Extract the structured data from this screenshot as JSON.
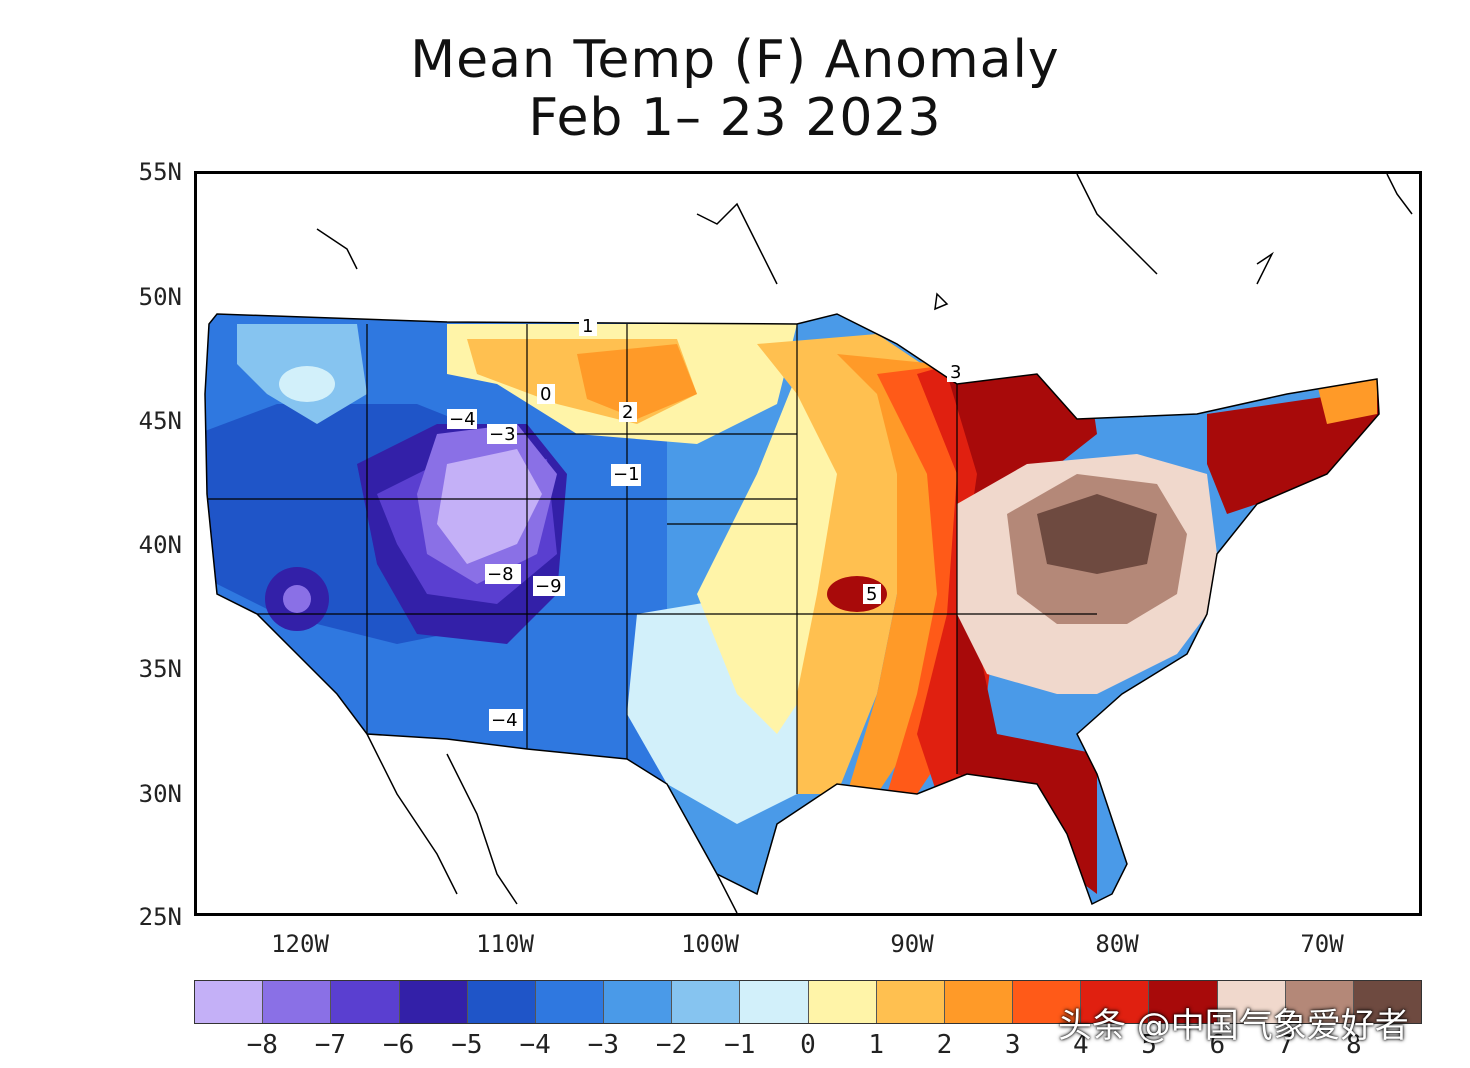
{
  "title": {
    "line1": "Mean Temp (F) Anomaly",
    "line2": "Feb 1– 23 2023"
  },
  "latitudes": [
    "55N",
    "50N",
    "45N",
    "40N",
    "35N",
    "30N",
    "25N"
  ],
  "longitudes": [
    "120W",
    "110W",
    "100W",
    "90W",
    "80W",
    "70W"
  ],
  "colorbar": {
    "colors": [
      "#c4b0f7",
      "#8a70e6",
      "#5a3fd0",
      "#3320a8",
      "#1f55c8",
      "#2f78e0",
      "#4a9ae8",
      "#86c4f0",
      "#d2f0fa",
      "#fff4a8",
      "#ffc050",
      "#ff9a28",
      "#ff5a18",
      "#e02010",
      "#a80a0a",
      "#f0d8cc",
      "#b48878",
      "#6e4a40"
    ],
    "labels": [
      "−8",
      "−7",
      "−6",
      "−5",
      "−4",
      "−3",
      "−2",
      "−1",
      "0",
      "1",
      "2",
      "3",
      "4",
      "5",
      "6",
      "7",
      "8"
    ]
  },
  "contour_labels": [
    "1",
    "0",
    "2",
    "3",
    "−4",
    "−3",
    "−1",
    "−8",
    "−9",
    "5",
    "−4"
  ],
  "watermark": "头条 @中国气象爱好者"
}
